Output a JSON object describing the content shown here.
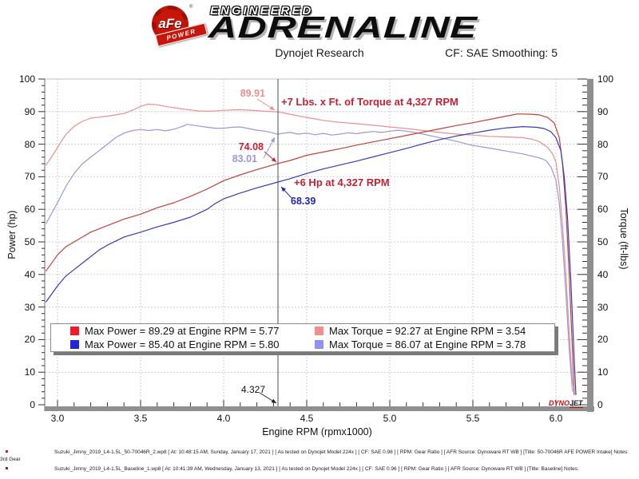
{
  "header": {
    "badge_text": "aFe",
    "badge_reg": "®",
    "badge_sub": "POWER",
    "tagline": "ENGINEERED",
    "brand": "ADRENALINE",
    "title": "Dynojet Research",
    "smoothing": "CF: SAE Smoothing: 5"
  },
  "colors": {
    "power_new": "#c2403a",
    "torque_new": "#e79191",
    "power_base": "#3a3ab8",
    "torque_base": "#9898da",
    "annotation_red": "#c42233",
    "annotation_blue": "#2525b0",
    "legend_power_new": "#ee1b2d",
    "legend_torque_new": "#f08f8f",
    "legend_power_base": "#2323e0",
    "legend_torque_base": "#9191ef",
    "grid": "#cdcdcd",
    "axis_bar": "#8f8f8f",
    "marker_line": "#4d4d4d",
    "footnote_bullet_1": "#cc2222",
    "footnote_bullet_2": "#3333bb"
  },
  "chart_data": {
    "type": "line",
    "title": "Dynojet Research",
    "xlabel": "Engine RPM (rpmx1000)",
    "ylabel_left": "Power (hp)",
    "ylabel_right": "Torque (ft-lbs)",
    "xlim": [
      2.92,
      6.22
    ],
    "ylim_left": [
      0,
      100
    ],
    "ylim_right": [
      0,
      100
    ],
    "x_ticks": [
      "3.0",
      "3.5",
      "4.0",
      "4.5",
      "5.0",
      "5.5",
      "6.0"
    ],
    "y_ticks": [
      "0",
      "10",
      "20",
      "30",
      "40",
      "50",
      "60",
      "70",
      "80",
      "90",
      "100"
    ],
    "grid": true,
    "legend_position": "bottom-inside",
    "marker_rpm": 4.327,
    "series": [
      {
        "name": "torque_new",
        "axis": "right",
        "label": "Max Torque = 92.27 at Engine RPM = 3.54",
        "max": {
          "value": 92.27,
          "rpm": 3.54
        },
        "points": [
          [
            2.93,
            73.5
          ],
          [
            2.97,
            76.5
          ],
          [
            3.0,
            79
          ],
          [
            3.05,
            83
          ],
          [
            3.1,
            85.5
          ],
          [
            3.15,
            87
          ],
          [
            3.2,
            88
          ],
          [
            3.25,
            88.3
          ],
          [
            3.3,
            88.6
          ],
          [
            3.35,
            89
          ],
          [
            3.4,
            89.4
          ],
          [
            3.45,
            90.4
          ],
          [
            3.5,
            91.6
          ],
          [
            3.54,
            92.27
          ],
          [
            3.6,
            92.1
          ],
          [
            3.65,
            91.6
          ],
          [
            3.7,
            91.2
          ],
          [
            3.75,
            90.8
          ],
          [
            3.8,
            90.5
          ],
          [
            3.85,
            90.2
          ],
          [
            3.9,
            90.1
          ],
          [
            3.95,
            90.2
          ],
          [
            4.0,
            90.4
          ],
          [
            4.1,
            90.6
          ],
          [
            4.2,
            90.3
          ],
          [
            4.25,
            90.1
          ],
          [
            4.327,
            89.91
          ],
          [
            4.4,
            89.2
          ],
          [
            4.5,
            88.2
          ],
          [
            4.6,
            87.3
          ],
          [
            4.7,
            86.7
          ],
          [
            4.8,
            86.3
          ],
          [
            4.9,
            85.8
          ],
          [
            5.0,
            85.3
          ],
          [
            5.1,
            84.8
          ],
          [
            5.2,
            84.2
          ],
          [
            5.3,
            83.6
          ],
          [
            5.4,
            83.1
          ],
          [
            5.5,
            82.8
          ],
          [
            5.6,
            82.4
          ],
          [
            5.7,
            82.2
          ],
          [
            5.8,
            82
          ],
          [
            5.85,
            81.6
          ],
          [
            5.9,
            80.8
          ],
          [
            5.95,
            79
          ],
          [
            5.98,
            77
          ],
          [
            6.0,
            74.5
          ],
          [
            6.02,
            67
          ],
          [
            6.04,
            55
          ],
          [
            6.06,
            40
          ],
          [
            6.08,
            22
          ],
          [
            6.1,
            6
          ]
        ]
      },
      {
        "name": "torque_base",
        "axis": "right",
        "label": "Max Torque = 86.07 at Engine RPM = 3.78",
        "max": {
          "value": 86.07,
          "rpm": 3.78
        },
        "points": [
          [
            2.93,
            55.5
          ],
          [
            3.0,
            62
          ],
          [
            3.05,
            67
          ],
          [
            3.1,
            71
          ],
          [
            3.15,
            74
          ],
          [
            3.2,
            76
          ],
          [
            3.25,
            78
          ],
          [
            3.3,
            80
          ],
          [
            3.35,
            82
          ],
          [
            3.4,
            83.4
          ],
          [
            3.45,
            84.2
          ],
          [
            3.5,
            84.5
          ],
          [
            3.55,
            84.2
          ],
          [
            3.6,
            84.5
          ],
          [
            3.65,
            84.1
          ],
          [
            3.7,
            84.6
          ],
          [
            3.75,
            85.4
          ],
          [
            3.78,
            86.07
          ],
          [
            3.85,
            85.6
          ],
          [
            3.9,
            85.2
          ],
          [
            3.95,
            84.9
          ],
          [
            4.0,
            84.9
          ],
          [
            4.05,
            85.2
          ],
          [
            4.1,
            85.3
          ],
          [
            4.15,
            84.8
          ],
          [
            4.2,
            84.3
          ],
          [
            4.25,
            84
          ],
          [
            4.3,
            83.4
          ],
          [
            4.327,
            83.01
          ],
          [
            4.35,
            83.3
          ],
          [
            4.4,
            83.6
          ],
          [
            4.45,
            83.1
          ],
          [
            4.5,
            83.4
          ],
          [
            4.55,
            82.9
          ],
          [
            4.6,
            83.3
          ],
          [
            4.65,
            82.8
          ],
          [
            4.7,
            83.1
          ],
          [
            4.75,
            83.5
          ],
          [
            4.8,
            83.2
          ],
          [
            4.85,
            83.6
          ],
          [
            4.9,
            83.9
          ],
          [
            4.95,
            83.6
          ],
          [
            5.0,
            84
          ],
          [
            5.05,
            84.3
          ],
          [
            5.1,
            84
          ],
          [
            5.15,
            83.6
          ],
          [
            5.2,
            83.1
          ],
          [
            5.3,
            82
          ],
          [
            5.4,
            80.9
          ],
          [
            5.5,
            79.6
          ],
          [
            5.6,
            78.8
          ],
          [
            5.7,
            77.9
          ],
          [
            5.8,
            77
          ],
          [
            5.85,
            76.4
          ],
          [
            5.9,
            75.8
          ],
          [
            5.94,
            75
          ],
          [
            5.97,
            73
          ],
          [
            6.0,
            69
          ],
          [
            6.02,
            62
          ],
          [
            6.04,
            50
          ],
          [
            6.06,
            34
          ],
          [
            6.08,
            17
          ],
          [
            6.1,
            4
          ]
        ]
      },
      {
        "name": "power_new",
        "axis": "left",
        "label": "Max Power = 89.29 at Engine RPM = 5.77",
        "max": {
          "value": 89.29,
          "rpm": 5.77
        },
        "points": [
          [
            2.93,
            41
          ],
          [
            3.0,
            46
          ],
          [
            3.05,
            48.5
          ],
          [
            3.1,
            50
          ],
          [
            3.15,
            51.5
          ],
          [
            3.2,
            53
          ],
          [
            3.3,
            55
          ],
          [
            3.4,
            57
          ],
          [
            3.5,
            58.5
          ],
          [
            3.6,
            60.5
          ],
          [
            3.7,
            62
          ],
          [
            3.8,
            64
          ],
          [
            3.9,
            66.2
          ],
          [
            4.0,
            68.8
          ],
          [
            4.1,
            70.6
          ],
          [
            4.2,
            72.2
          ],
          [
            4.327,
            74.08
          ],
          [
            4.4,
            75
          ],
          [
            4.5,
            76.6
          ],
          [
            4.6,
            77.6
          ],
          [
            4.7,
            78.6
          ],
          [
            4.8,
            79.7
          ],
          [
            4.9,
            80.7
          ],
          [
            5.0,
            81.7
          ],
          [
            5.1,
            82.7
          ],
          [
            5.2,
            83.7
          ],
          [
            5.3,
            84.7
          ],
          [
            5.4,
            85.7
          ],
          [
            5.5,
            86.6
          ],
          [
            5.6,
            87.6
          ],
          [
            5.7,
            88.6
          ],
          [
            5.77,
            89.29
          ],
          [
            5.85,
            89.2
          ],
          [
            5.9,
            89
          ],
          [
            5.95,
            88.2
          ],
          [
            5.99,
            86.5
          ],
          [
            6.02,
            82
          ],
          [
            6.04,
            74
          ],
          [
            6.06,
            60
          ],
          [
            6.08,
            40
          ],
          [
            6.1,
            16
          ],
          [
            6.11,
            3
          ]
        ]
      },
      {
        "name": "power_base",
        "axis": "left",
        "label": "Max Power = 85.40 at Engine RPM = 5.80",
        "max": {
          "value": 85.4,
          "rpm": 5.8
        },
        "points": [
          [
            2.93,
            31.5
          ],
          [
            3.0,
            36.5
          ],
          [
            3.05,
            39.5
          ],
          [
            3.1,
            41.5
          ],
          [
            3.15,
            43.5
          ],
          [
            3.2,
            45.5
          ],
          [
            3.25,
            47.5
          ],
          [
            3.3,
            49
          ],
          [
            3.4,
            51.5
          ],
          [
            3.5,
            53
          ],
          [
            3.6,
            54.6
          ],
          [
            3.7,
            56
          ],
          [
            3.8,
            57.6
          ],
          [
            3.9,
            60
          ],
          [
            3.95,
            61.8
          ],
          [
            4.0,
            63.2
          ],
          [
            4.1,
            65
          ],
          [
            4.2,
            66.6
          ],
          [
            4.327,
            68.39
          ],
          [
            4.4,
            69.4
          ],
          [
            4.5,
            71
          ],
          [
            4.6,
            72.4
          ],
          [
            4.7,
            73.6
          ],
          [
            4.8,
            74.8
          ],
          [
            4.9,
            76.1
          ],
          [
            5.0,
            77.4
          ],
          [
            5.1,
            78.7
          ],
          [
            5.2,
            80.1
          ],
          [
            5.3,
            81.4
          ],
          [
            5.4,
            82.5
          ],
          [
            5.5,
            83.4
          ],
          [
            5.6,
            84.3
          ],
          [
            5.7,
            85
          ],
          [
            5.8,
            85.4
          ],
          [
            5.88,
            85.2
          ],
          [
            5.93,
            84.8
          ],
          [
            5.97,
            83.8
          ],
          [
            6.0,
            82
          ],
          [
            6.03,
            78
          ],
          [
            6.05,
            70
          ],
          [
            6.07,
            57
          ],
          [
            6.09,
            38
          ],
          [
            6.11,
            14
          ],
          [
            6.12,
            3
          ]
        ]
      }
    ],
    "annotations": {
      "torque_value_new": "89.91",
      "power_value_new": "74.08",
      "torque_value_base": "83.01",
      "power_value_base": "68.39",
      "torque_gain": "+7 Lbs. x Ft. of Torque at 4,327 RPM",
      "power_gain": "+6 Hp at 4,327 RPM",
      "marker_label": "4.327"
    }
  },
  "legend": {
    "items": [
      {
        "label": "Max Power = 89.29 at Engine RPM = 5.77"
      },
      {
        "label": "Max Torque = 92.27 at Engine RPM = 3.54"
      },
      {
        "label": "Max Power = 85.40 at Engine RPM = 5.80"
      },
      {
        "label": "Max Torque = 86.07 at Engine RPM = 3.78"
      }
    ]
  },
  "watermark": {
    "part1": "DYNO",
    "part2": "JET"
  },
  "footnotes": [
    {
      "text": "Suzuki_Jimny_2019_L4-1.5L_50-70046R_2.wp8 [ At: 10:48:15 AM, Sunday, January 17, 2021 ] [ As tested on Dynojet Model 224x ] [ CF: SAE 0.98 ] [ RPM: Gear Ratio ] [ AFR Source: Dynoware RT WB ] [Title: 50-70046R AFE POWER Intake]  Notes: 3rd Gear"
    },
    {
      "text": "Suzuki_Jimny_2019_L4-1.5L_Baseline_1.wp8 [ At: 10:41:39 AM, Wednesday, January 13, 2021 ] [ As tested on Dynojet Model 224x ] [ CF: SAE 0.96 ] [ RPM: Gear Ratio ] [ AFR Source: Dynoware RT WB ] [Title: Baseline]  Notes:"
    }
  ]
}
